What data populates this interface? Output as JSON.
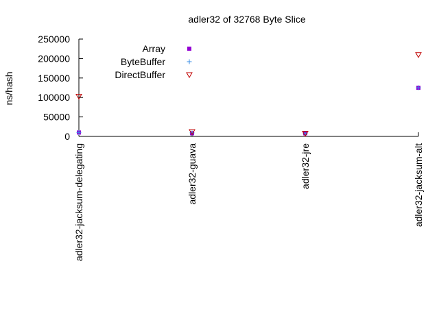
{
  "chart_data": {
    "type": "scatter",
    "title": "adler32 of 32768 Byte Slice",
    "ylabel": "ns/hash",
    "xlabel": "",
    "categories": [
      "adler32-jacksum-delegating",
      "adler32-guava",
      "adler32-jre",
      "adler32-jacksum-alt"
    ],
    "ylim": [
      0,
      250000
    ],
    "yticks": [
      0,
      50000,
      100000,
      150000,
      200000,
      250000
    ],
    "legend_position": "top-left",
    "grid": false,
    "series": [
      {
        "name": "Array",
        "marker": "filled-square",
        "color": "#9400d3",
        "values": [
          10000,
          8000,
          8000,
          125000
        ]
      },
      {
        "name": "ByteBuffer",
        "marker": "plus",
        "color": "#3a8ee6",
        "values": [
          10000,
          9000,
          8000,
          125000
        ]
      },
      {
        "name": "DirectBuffer",
        "marker": "open-triangle-down",
        "color": "#c00000",
        "values": [
          103000,
          12000,
          8000,
          210000
        ]
      }
    ]
  }
}
